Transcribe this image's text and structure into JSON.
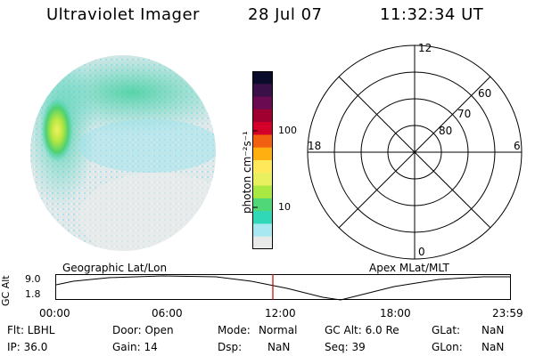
{
  "header": {
    "title": "Ultraviolet Imager",
    "date": "28 Jul 07",
    "time": "11:32:34 UT"
  },
  "colorbar": {
    "unit_label": "photon cm⁻²s⁻¹",
    "tick_labels": [
      "100",
      "10"
    ],
    "colors": [
      "#0a0a2a",
      "#3a1048",
      "#6a0a50",
      "#a00030",
      "#d4002a",
      "#f06010",
      "#ffb010",
      "#ffe85a",
      "#e8f060",
      "#a8e840",
      "#50d878",
      "#30d8b8",
      "#a8e8f0",
      "#e8eaea"
    ]
  },
  "polar_plot": {
    "top_label": "12",
    "bottom_label": "0",
    "left_label": "18",
    "right_label": "6",
    "lat_labels": [
      "60",
      "70",
      "80"
    ]
  },
  "timeline": {
    "left_label": "Geographic Lat/Lon",
    "right_label": "Apex MLat/MLT",
    "axis_title": "GC Alt",
    "y_ticks": [
      "9.0",
      "1.8"
    ],
    "x_ticks": [
      "00:00",
      "06:00",
      "12:00",
      "18:00",
      "23:59"
    ],
    "marker_color": "#c00000"
  },
  "info": {
    "col1": [
      "Flt: LBHL",
      "IP: 36.0"
    ],
    "col2": [
      "Door: Open",
      "Gain: 14"
    ],
    "col3": [
      {
        "label": "Mode:",
        "value": "Normal"
      },
      {
        "label": "Dsp:",
        "value": "NaN"
      }
    ],
    "col4": [
      "GC Alt: 6.0 Re",
      "Seq: 39"
    ],
    "col5": [
      {
        "label": "GLat:",
        "value": "NaN"
      },
      {
        "label": "GLon:",
        "value": "NaN"
      }
    ]
  }
}
